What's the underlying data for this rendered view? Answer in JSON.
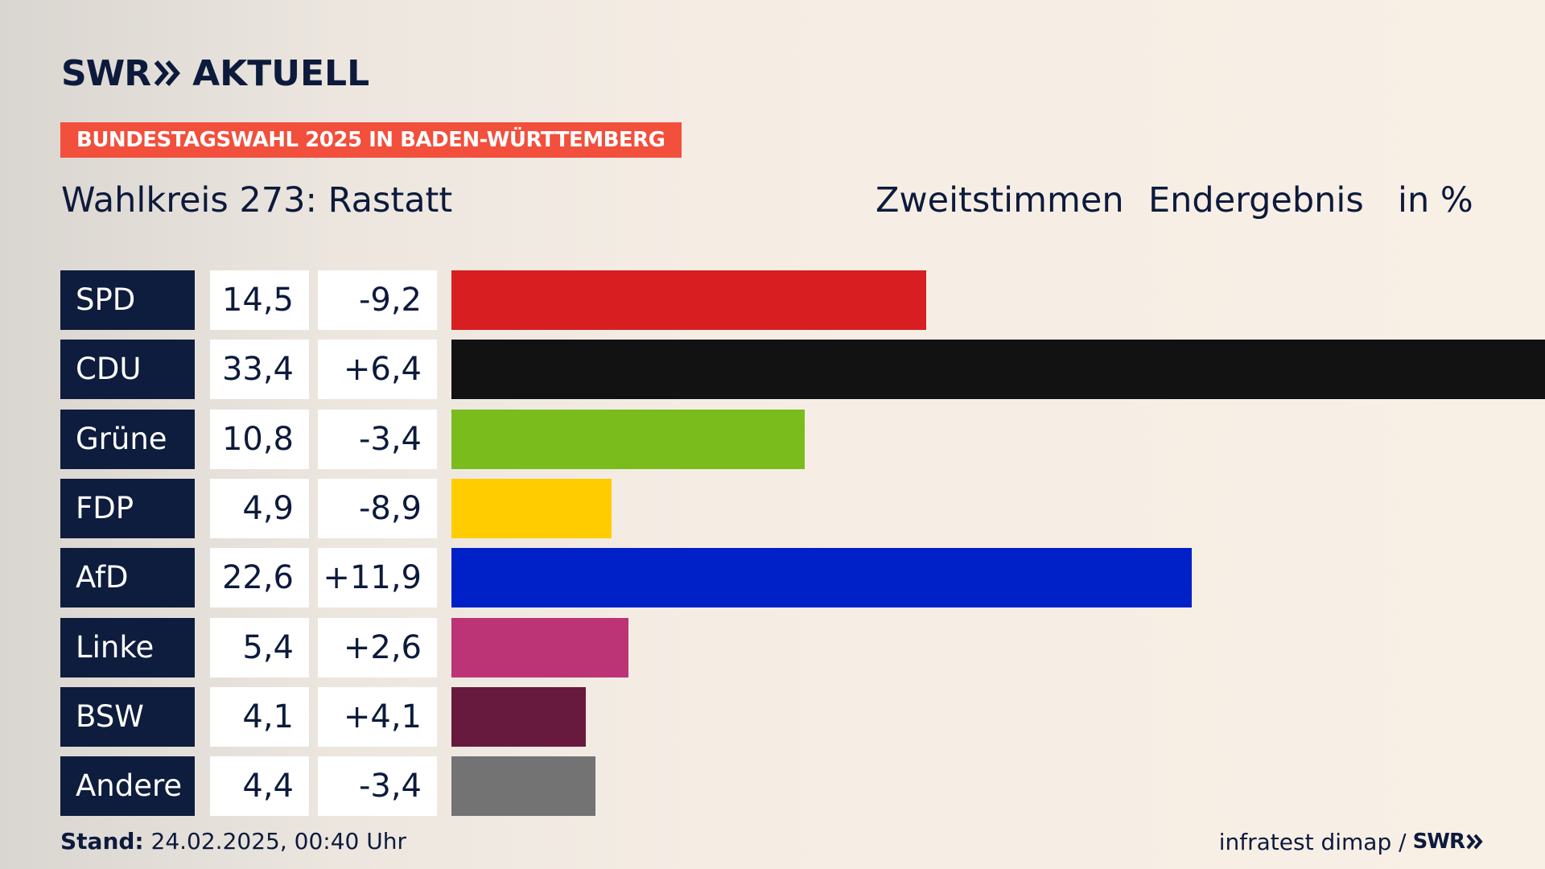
{
  "header": {
    "logo_swr": "SWR",
    "logo_aktuell": "AKTUELL",
    "badge": "BUNDESTAGSWAHL 2025 IN BADEN-WÜRTTEMBERG",
    "title": "Wahlkreis 273: Rastatt",
    "vote_type": "Zweitstimmen",
    "status": "Endergebnis",
    "unit": "in %"
  },
  "chart_data": {
    "type": "bar",
    "orientation": "horizontal",
    "title": "Wahlkreis 273: Rastatt",
    "xlim": [
      0,
      33.4
    ],
    "rows": [
      {
        "party": "SPD",
        "share": "14,5",
        "diff": "-9,2",
        "value": 14.5,
        "color": "#d81e21"
      },
      {
        "party": "CDU",
        "share": "33,4",
        "diff": "+6,4",
        "value": 33.4,
        "color": "#121212"
      },
      {
        "party": "Grüne",
        "share": "10,8",
        "diff": "-3,4",
        "value": 10.8,
        "color": "#79bc1c"
      },
      {
        "party": "FDP",
        "share": "4,9",
        "diff": "-8,9",
        "value": 4.9,
        "color": "#ffcc00"
      },
      {
        "party": "AfD",
        "share": "22,6",
        "diff": "+11,9",
        "value": 22.6,
        "color": "#0021c8"
      },
      {
        "party": "Linke",
        "share": "5,4",
        "diff": "+2,6",
        "value": 5.4,
        "color": "#bc3475"
      },
      {
        "party": "BSW",
        "share": "4,1",
        "diff": "+4,1",
        "value": 4.1,
        "color": "#671a3d"
      },
      {
        "party": "Andere",
        "share": "4,4",
        "diff": "-3,4",
        "value": 4.4,
        "color": "#737373"
      }
    ]
  },
  "footer": {
    "stand_label": "Stand:",
    "stand_value": " 24.02.2025, 00:40 Uhr",
    "source": "infratest dimap /",
    "source_logo": "SWR"
  }
}
